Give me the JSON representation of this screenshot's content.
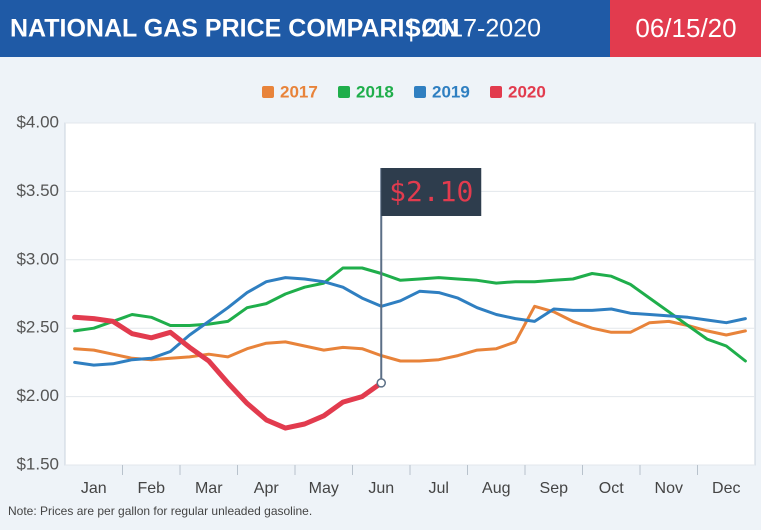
{
  "chart_data": {
    "type": "line",
    "title": "NATIONAL GAS PRICE COMPARISON",
    "subtitle": "| 2017-2020",
    "date": "06/15/20",
    "annotation": "$2.10",
    "note": "Note: Prices are per gallon for regular unleaded gasoline.",
    "categories": [
      null,
      "Jan",
      null,
      null,
      "Feb",
      null,
      null,
      "Mar",
      null,
      null,
      "Apr",
      null,
      null,
      "May",
      null,
      null,
      "Jun",
      null,
      null,
      "Jul",
      null,
      null,
      "Aug",
      null,
      null,
      "Sep",
      null,
      null,
      "Oct",
      null,
      null,
      "Nov",
      null,
      null,
      "Dec",
      null
    ],
    "series": [
      {
        "name": "2017",
        "color": "#e8833a",
        "values": [
          2.35,
          2.34,
          2.31,
          2.28,
          2.27,
          2.28,
          2.29,
          2.31,
          2.29,
          2.35,
          2.39,
          2.4,
          2.37,
          2.34,
          2.36,
          2.35,
          2.3,
          2.26,
          2.26,
          2.27,
          2.3,
          2.34,
          2.35,
          2.4,
          2.66,
          2.62,
          2.55,
          2.5,
          2.47,
          2.47,
          2.54,
          2.55,
          2.52,
          2.48,
          2.45,
          2.48
        ]
      },
      {
        "name": "2018",
        "color": "#1fae4b",
        "values": [
          2.48,
          2.5,
          2.55,
          2.6,
          2.58,
          2.52,
          2.52,
          2.53,
          2.55,
          2.65,
          2.68,
          2.75,
          2.8,
          2.83,
          2.94,
          2.94,
          2.9,
          2.85,
          2.86,
          2.87,
          2.86,
          2.85,
          2.83,
          2.84,
          2.84,
          2.85,
          2.86,
          2.9,
          2.88,
          2.82,
          2.72,
          2.62,
          2.52,
          2.42,
          2.37,
          2.26
        ]
      },
      {
        "name": "2019",
        "color": "#2f7fc1",
        "values": [
          2.25,
          2.23,
          2.24,
          2.27,
          2.28,
          2.33,
          2.45,
          2.55,
          2.65,
          2.76,
          2.84,
          2.87,
          2.86,
          2.84,
          2.8,
          2.72,
          2.66,
          2.7,
          2.77,
          2.76,
          2.72,
          2.65,
          2.6,
          2.57,
          2.55,
          2.64,
          2.63,
          2.63,
          2.64,
          2.61,
          2.6,
          2.59,
          2.58,
          2.56,
          2.54,
          2.57
        ]
      },
      {
        "name": "2020",
        "color": "#e23b4e",
        "values": [
          2.58,
          2.57,
          2.55,
          2.46,
          2.43,
          2.47,
          2.36,
          2.26,
          2.1,
          1.95,
          1.83,
          1.77,
          1.8,
          1.86,
          1.96,
          2.0,
          2.1,
          null,
          null,
          null,
          null,
          null,
          null,
          null,
          null,
          null,
          null,
          null,
          null,
          null,
          null,
          null,
          null,
          null,
          null,
          null
        ]
      }
    ],
    "ylim": [
      1.5,
      4.0
    ],
    "yticks": [
      {
        "value": 1.5,
        "label": "$1.50"
      },
      {
        "value": 2.0,
        "label": "$2.00"
      },
      {
        "value": 2.5,
        "label": "$2.50"
      },
      {
        "value": 3.0,
        "label": "$3.00"
      },
      {
        "value": 3.5,
        "label": "$3.50"
      },
      {
        "value": 4.0,
        "label": "$4.00"
      }
    ],
    "grid": true
  }
}
